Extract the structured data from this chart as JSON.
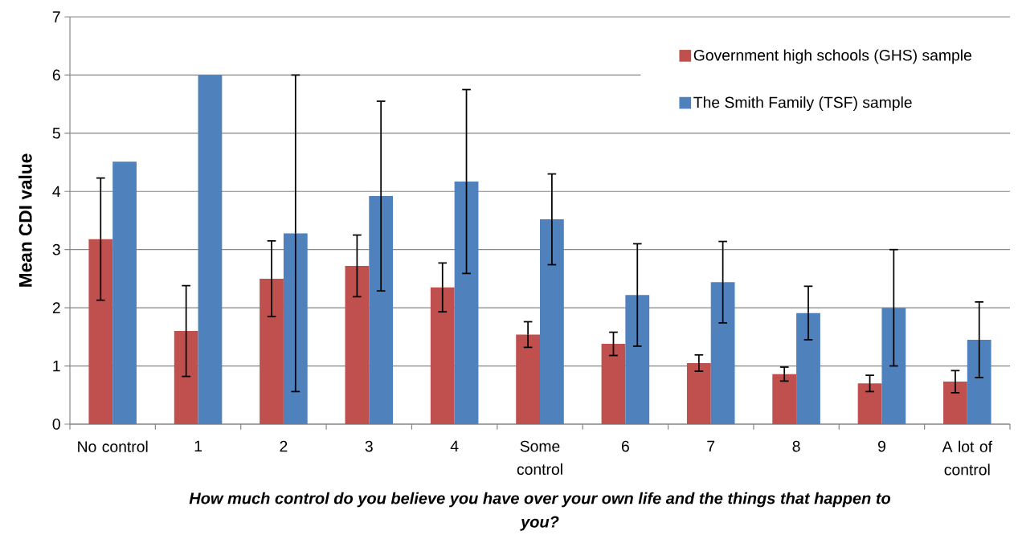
{
  "chart_data": {
    "type": "bar",
    "xlabel": "How much control do you believe you have over your own life and the things that happen to you?",
    "ylabel": "Mean CDI value",
    "categories": [
      "No control",
      "1",
      "2",
      "3",
      "4",
      "Some control",
      "6",
      "7",
      "8",
      "9",
      "A lot of control"
    ],
    "series": [
      {
        "name": "Government high schools (GHS) sample",
        "color": "#C0504D",
        "values": [
          3.18,
          1.6,
          2.5,
          2.72,
          2.35,
          1.54,
          1.38,
          1.05,
          0.86,
          0.7,
          0.73
        ],
        "errors": [
          1.05,
          0.78,
          0.65,
          0.53,
          0.42,
          0.22,
          0.2,
          0.14,
          0.12,
          0.14,
          0.19
        ]
      },
      {
        "name": "The Smith Family (TSF) sample",
        "color": "#4F81BD",
        "values": [
          4.51,
          6.0,
          3.28,
          3.92,
          4.17,
          3.52,
          2.22,
          2.44,
          1.91,
          2.0,
          1.45
        ],
        "errors": [
          null,
          null,
          2.72,
          1.63,
          1.58,
          0.78,
          0.88,
          0.7,
          0.46,
          1.0,
          0.65
        ]
      }
    ],
    "ylim": [
      0,
      7
    ],
    "yticks": [
      0,
      1,
      2,
      3,
      4,
      5,
      6,
      7
    ],
    "grid": "y",
    "legend": "top right"
  }
}
